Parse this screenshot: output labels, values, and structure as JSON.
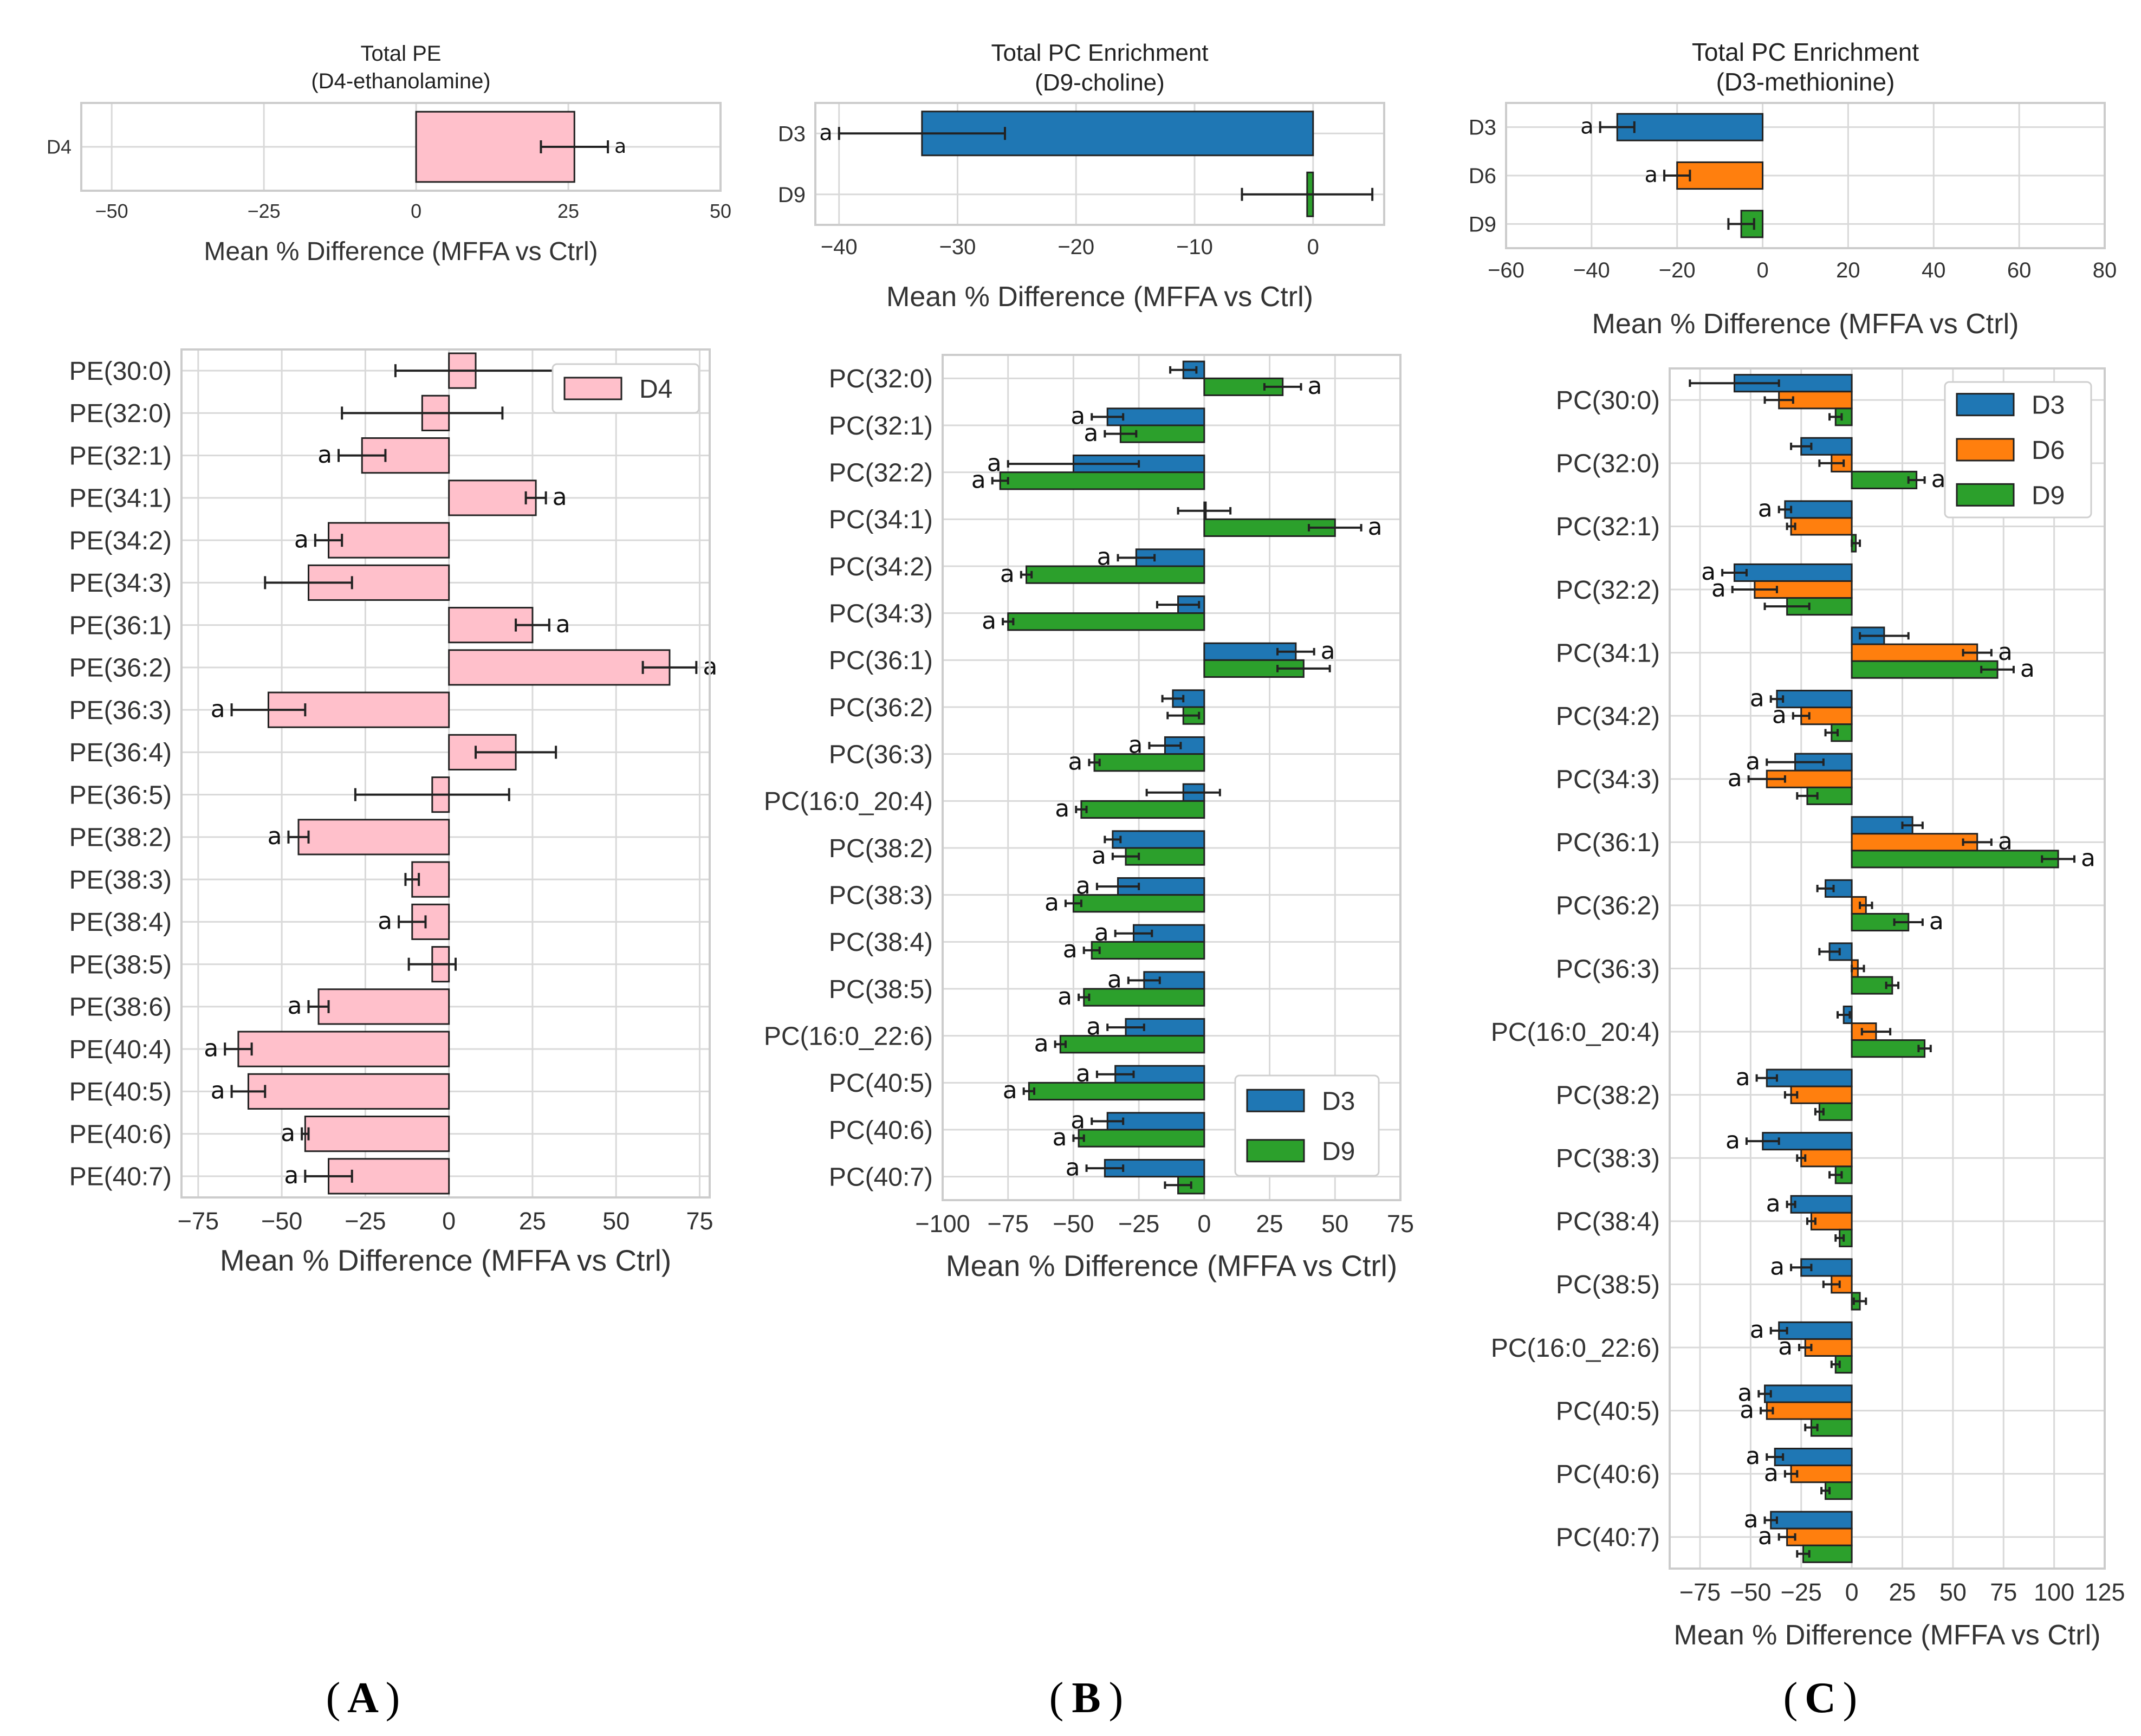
{
  "panel_labels": [
    "A",
    "B",
    "C"
  ],
  "colors": {
    "D4": "#ffc0cb",
    "D3": "#1f77b4",
    "D6": "#ff7f0e",
    "D9": "#2ca02c",
    "grid": "#d9d9d9",
    "frame": "#cccccc",
    "err": "#222222"
  },
  "chart_data": [
    {
      "id": "a_top",
      "type": "bar",
      "orientation": "horizontal",
      "title": "Total PE",
      "subtitle": "(D4-ethanolamine)",
      "xlabel": "Mean % Difference (MFFA vs Ctrl)",
      "xlim": [
        -55,
        50
      ],
      "xticks": [
        -50,
        -25,
        0,
        25,
        50
      ],
      "categories": [
        "D4"
      ],
      "series_labels_on_axis": true,
      "series": [
        {
          "name": "D4",
          "values": [
            26
          ],
          "errors": [
            5.5
          ],
          "sig": [
            "a"
          ]
        }
      ]
    },
    {
      "id": "a_main",
      "type": "bar",
      "orientation": "horizontal",
      "xlabel": "Mean % Difference (MFFA vs Ctrl)",
      "xlim": [
        -80,
        78
      ],
      "xticks": [
        -75,
        -50,
        -25,
        0,
        25,
        50,
        75
      ],
      "legend": [
        "D4"
      ],
      "legend_position": "top-right",
      "categories": [
        "PE(30:0)",
        "PE(32:0)",
        "PE(32:1)",
        "PE(34:1)",
        "PE(34:2)",
        "PE(34:3)",
        "PE(36:1)",
        "PE(36:2)",
        "PE(36:3)",
        "PE(36:4)",
        "PE(36:5)",
        "PE(38:2)",
        "PE(38:3)",
        "PE(38:4)",
        "PE(38:5)",
        "PE(38:6)",
        "PE(40:4)",
        "PE(40:5)",
        "PE(40:6)",
        "PE(40:7)"
      ],
      "series": [
        {
          "name": "D4",
          "values": [
            8,
            -8,
            -26,
            26,
            -36,
            -42,
            25,
            66,
            -54,
            20,
            -5,
            -45,
            -11,
            -11,
            -5,
            -39,
            -63,
            -60,
            -43,
            -36
          ],
          "errors": [
            24,
            24,
            7,
            3,
            4,
            13,
            5,
            8,
            11,
            12,
            23,
            3,
            2,
            4,
            7,
            3,
            4,
            5,
            1,
            7
          ],
          "sig": [
            "",
            "",
            "a",
            "a",
            "a",
            "",
            "a",
            "a",
            "a",
            "",
            "",
            "a",
            "",
            "a",
            "",
            "a",
            "a",
            "a",
            "a",
            "a"
          ]
        }
      ]
    },
    {
      "id": "b_top",
      "type": "bar",
      "orientation": "horizontal",
      "title": "Total PC Enrichment",
      "subtitle": "(D9-choline)",
      "xlabel": "Mean % Difference (MFFA vs Ctrl)",
      "xlim": [
        -42,
        6
      ],
      "xticks": [
        -40,
        -30,
        -20,
        -10,
        0
      ],
      "categories": [
        "D3",
        "D9"
      ],
      "series_labels_on_axis": true,
      "series": [
        {
          "name": "value",
          "colors": [
            "D3",
            "D9"
          ],
          "values": [
            -33,
            -0.5
          ],
          "errors": [
            7,
            5.5
          ],
          "sig": [
            "a",
            ""
          ]
        }
      ]
    },
    {
      "id": "b_main",
      "type": "bar",
      "orientation": "horizontal",
      "xlabel": "Mean % Difference (MFFA vs Ctrl)",
      "xlim": [
        -100,
        75
      ],
      "xticks": [
        -100,
        -75,
        -50,
        -25,
        0,
        25,
        50,
        75
      ],
      "legend": [
        "D3",
        "D9"
      ],
      "legend_position": "bottom-right",
      "categories": [
        "PC(32:0)",
        "PC(32:1)",
        "PC(32:2)",
        "PC(34:1)",
        "PC(34:2)",
        "PC(34:3)",
        "PC(36:1)",
        "PC(36:2)",
        "PC(36:3)",
        "PC(16:0_20:4)",
        "PC(38:2)",
        "PC(38:3)",
        "PC(38:4)",
        "PC(38:5)",
        "PC(16:0_22:6)",
        "PC(40:5)",
        "PC(40:6)",
        "PC(40:7)"
      ],
      "series": [
        {
          "name": "D3",
          "values": [
            -8,
            -37,
            -50,
            0,
            -26,
            -10,
            35,
            -12,
            -15,
            -8,
            -35,
            -33,
            -27,
            -23,
            -30,
            -34,
            -37,
            -38
          ],
          "errors": [
            5,
            6,
            25,
            10,
            7,
            8,
            7,
            4,
            6,
            14,
            3,
            8,
            7,
            6,
            7,
            7,
            6,
            7
          ],
          "sig": [
            "",
            "a",
            "a",
            "",
            "a",
            "",
            "a",
            "",
            "a",
            "",
            "",
            "a",
            "a",
            "a",
            "a",
            "a",
            "a",
            "a"
          ]
        },
        {
          "name": "D9",
          "values": [
            30,
            -32,
            -78,
            50,
            -68,
            -75,
            38,
            -8,
            -42,
            -47,
            -30,
            -50,
            -43,
            -46,
            -55,
            -67,
            -48,
            -10
          ],
          "errors": [
            7,
            6,
            3,
            10,
            2,
            2,
            10,
            6,
            2,
            2,
            5,
            3,
            3,
            2,
            2,
            2,
            2,
            5
          ],
          "sig": [
            "a",
            "a",
            "a",
            "a",
            "a",
            "a",
            "",
            "",
            "a",
            "a",
            "a",
            "a",
            "a",
            "a",
            "a",
            "a",
            "a",
            ""
          ]
        }
      ]
    },
    {
      "id": "c_top",
      "type": "bar",
      "orientation": "horizontal",
      "title": "Total PC Enrichment",
      "subtitle": "(D3-methionine)",
      "xlabel": "Mean % Difference (MFFA vs Ctrl)",
      "xlim": [
        -60,
        80
      ],
      "xticks": [
        -60,
        -40,
        -20,
        0,
        20,
        40,
        60,
        80
      ],
      "categories": [
        "D3",
        "D6",
        "D9"
      ],
      "series_labels_on_axis": true,
      "series": [
        {
          "name": "value",
          "colors": [
            "D3",
            "D6",
            "D9"
          ],
          "values": [
            -34,
            -20,
            -5
          ],
          "errors": [
            4,
            3,
            3
          ],
          "sig": [
            "a",
            "a",
            ""
          ]
        }
      ]
    },
    {
      "id": "c_main",
      "type": "bar",
      "orientation": "horizontal",
      "xlabel": "Mean % Difference (MFFA vs Ctrl)",
      "xlim": [
        -90,
        125
      ],
      "xticks": [
        -75,
        -50,
        -25,
        0,
        25,
        50,
        75,
        100,
        125
      ],
      "legend": [
        "D3",
        "D6",
        "D9"
      ],
      "legend_position": "top-right",
      "categories": [
        "PC(30:0)",
        "PC(32:0)",
        "PC(32:1)",
        "PC(32:2)",
        "PC(34:1)",
        "PC(34:2)",
        "PC(34:3)",
        "PC(36:1)",
        "PC(36:2)",
        "PC(36:3)",
        "PC(16:0_20:4)",
        "PC(38:2)",
        "PC(38:3)",
        "PC(38:4)",
        "PC(38:5)",
        "PC(16:0_22:6)",
        "PC(40:5)",
        "PC(40:6)",
        "PC(40:7)"
      ],
      "series": [
        {
          "name": "D3",
          "values": [
            -58,
            -25,
            -33,
            -58,
            16,
            -37,
            -28,
            30,
            -13,
            -11,
            -4,
            -42,
            -44,
            -30,
            -25,
            -36,
            -43,
            -38,
            -40
          ],
          "errors": [
            22,
            5,
            3,
            6,
            12,
            3,
            14,
            5,
            4,
            5,
            3,
            5,
            8,
            2,
            5,
            4,
            3,
            4,
            3
          ],
          "sig": [
            "",
            "",
            "a",
            "a",
            "",
            "a",
            "a",
            "",
            "",
            "",
            "",
            "a",
            "a",
            "a",
            "a",
            "a",
            "a",
            "a",
            "a"
          ]
        },
        {
          "name": "D6",
          "values": [
            -36,
            -10,
            -30,
            -48,
            62,
            -25,
            -42,
            62,
            7,
            3,
            12,
            -30,
            -25,
            -20,
            -10,
            -23,
            -42,
            -30,
            -32
          ],
          "errors": [
            7,
            6,
            2,
            11,
            7,
            4,
            9,
            7,
            3,
            3,
            7,
            3,
            2,
            2,
            4,
            3,
            3,
            3,
            4
          ],
          "sig": [
            "",
            "",
            "",
            "a",
            "a",
            "a",
            "a",
            "a",
            "",
            "",
            "",
            "",
            "",
            "",
            "",
            "a",
            "a",
            "a",
            "a"
          ]
        },
        {
          "name": "D9",
          "values": [
            -8,
            32,
            2,
            -32,
            72,
            -10,
            -22,
            102,
            28,
            20,
            36,
            -16,
            -8,
            -6,
            4,
            -8,
            -20,
            -13,
            -24
          ],
          "errors": [
            3,
            4,
            2,
            11,
            8,
            3,
            5,
            8,
            7,
            3,
            3,
            2,
            3,
            2,
            3,
            2,
            3,
            2,
            3
          ],
          "sig": [
            "",
            "a",
            "",
            "",
            "a",
            "",
            "",
            "a",
            "a",
            "",
            "",
            "",
            "",
            "",
            "",
            "",
            "",
            "",
            ""
          ]
        }
      ]
    }
  ]
}
